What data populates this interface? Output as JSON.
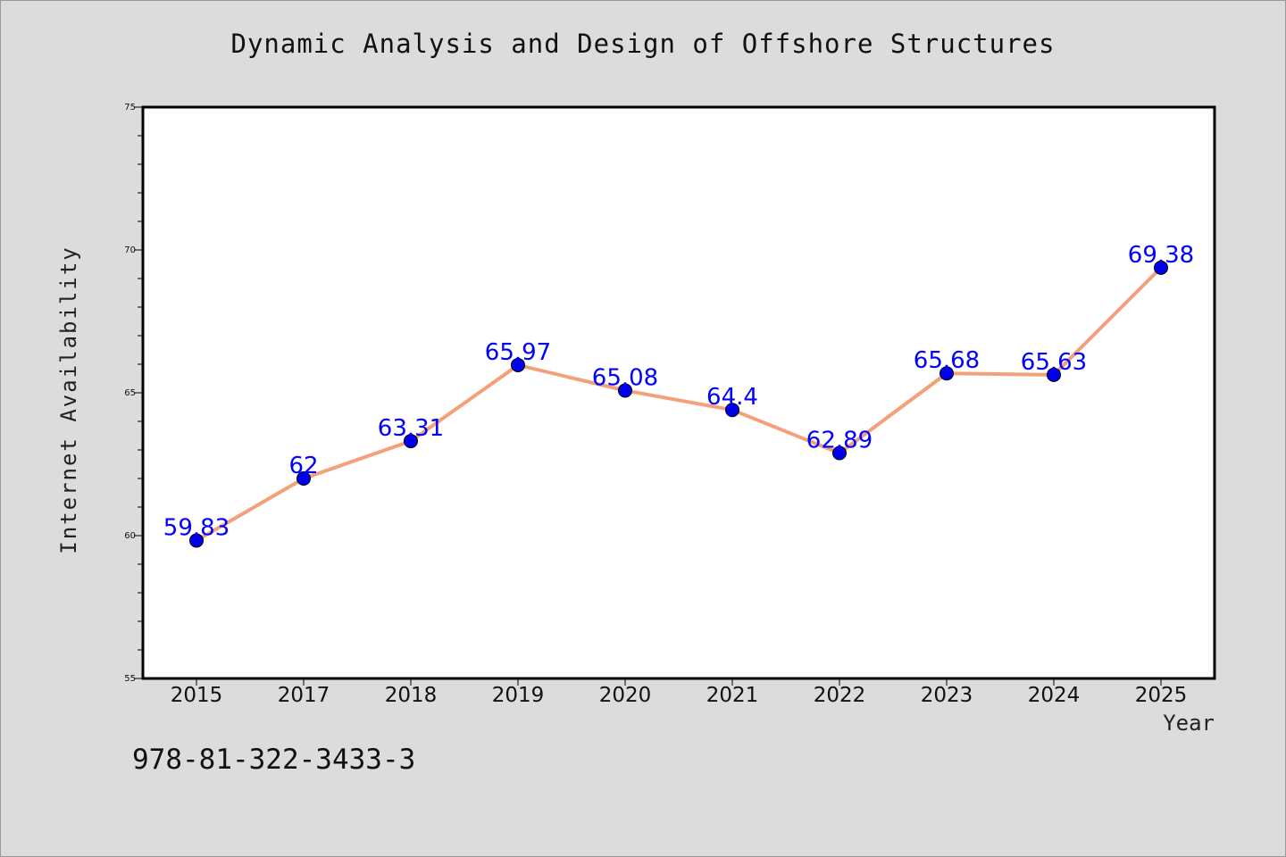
{
  "chart_data": {
    "type": "line",
    "title": "Dynamic Analysis and Design of Offshore Structures",
    "xlabel": "Year",
    "ylabel": "Internet Availability",
    "categories": [
      "2015",
      "2017",
      "2018",
      "2019",
      "2020",
      "2021",
      "2022",
      "2023",
      "2024",
      "2025"
    ],
    "series": [
      {
        "values": [
          59.83,
          62,
          63.31,
          65.97,
          65.08,
          64.4,
          62.89,
          65.68,
          65.63,
          69.38
        ],
        "labels": [
          "59.83",
          "62",
          "63.31",
          "65.97",
          "65.08",
          "64.4",
          "62.89",
          "65.68",
          "65.63",
          "69.38"
        ]
      }
    ],
    "ylim": [
      55,
      75
    ],
    "yticks": [
      "55",
      "60",
      "65",
      "70",
      "75"
    ],
    "grid": false,
    "colors": {
      "line": "#f4a07a",
      "marker": "#0000ee",
      "label": "#0000ff"
    }
  },
  "footer": {
    "isbn": "978-81-322-3433-3"
  }
}
